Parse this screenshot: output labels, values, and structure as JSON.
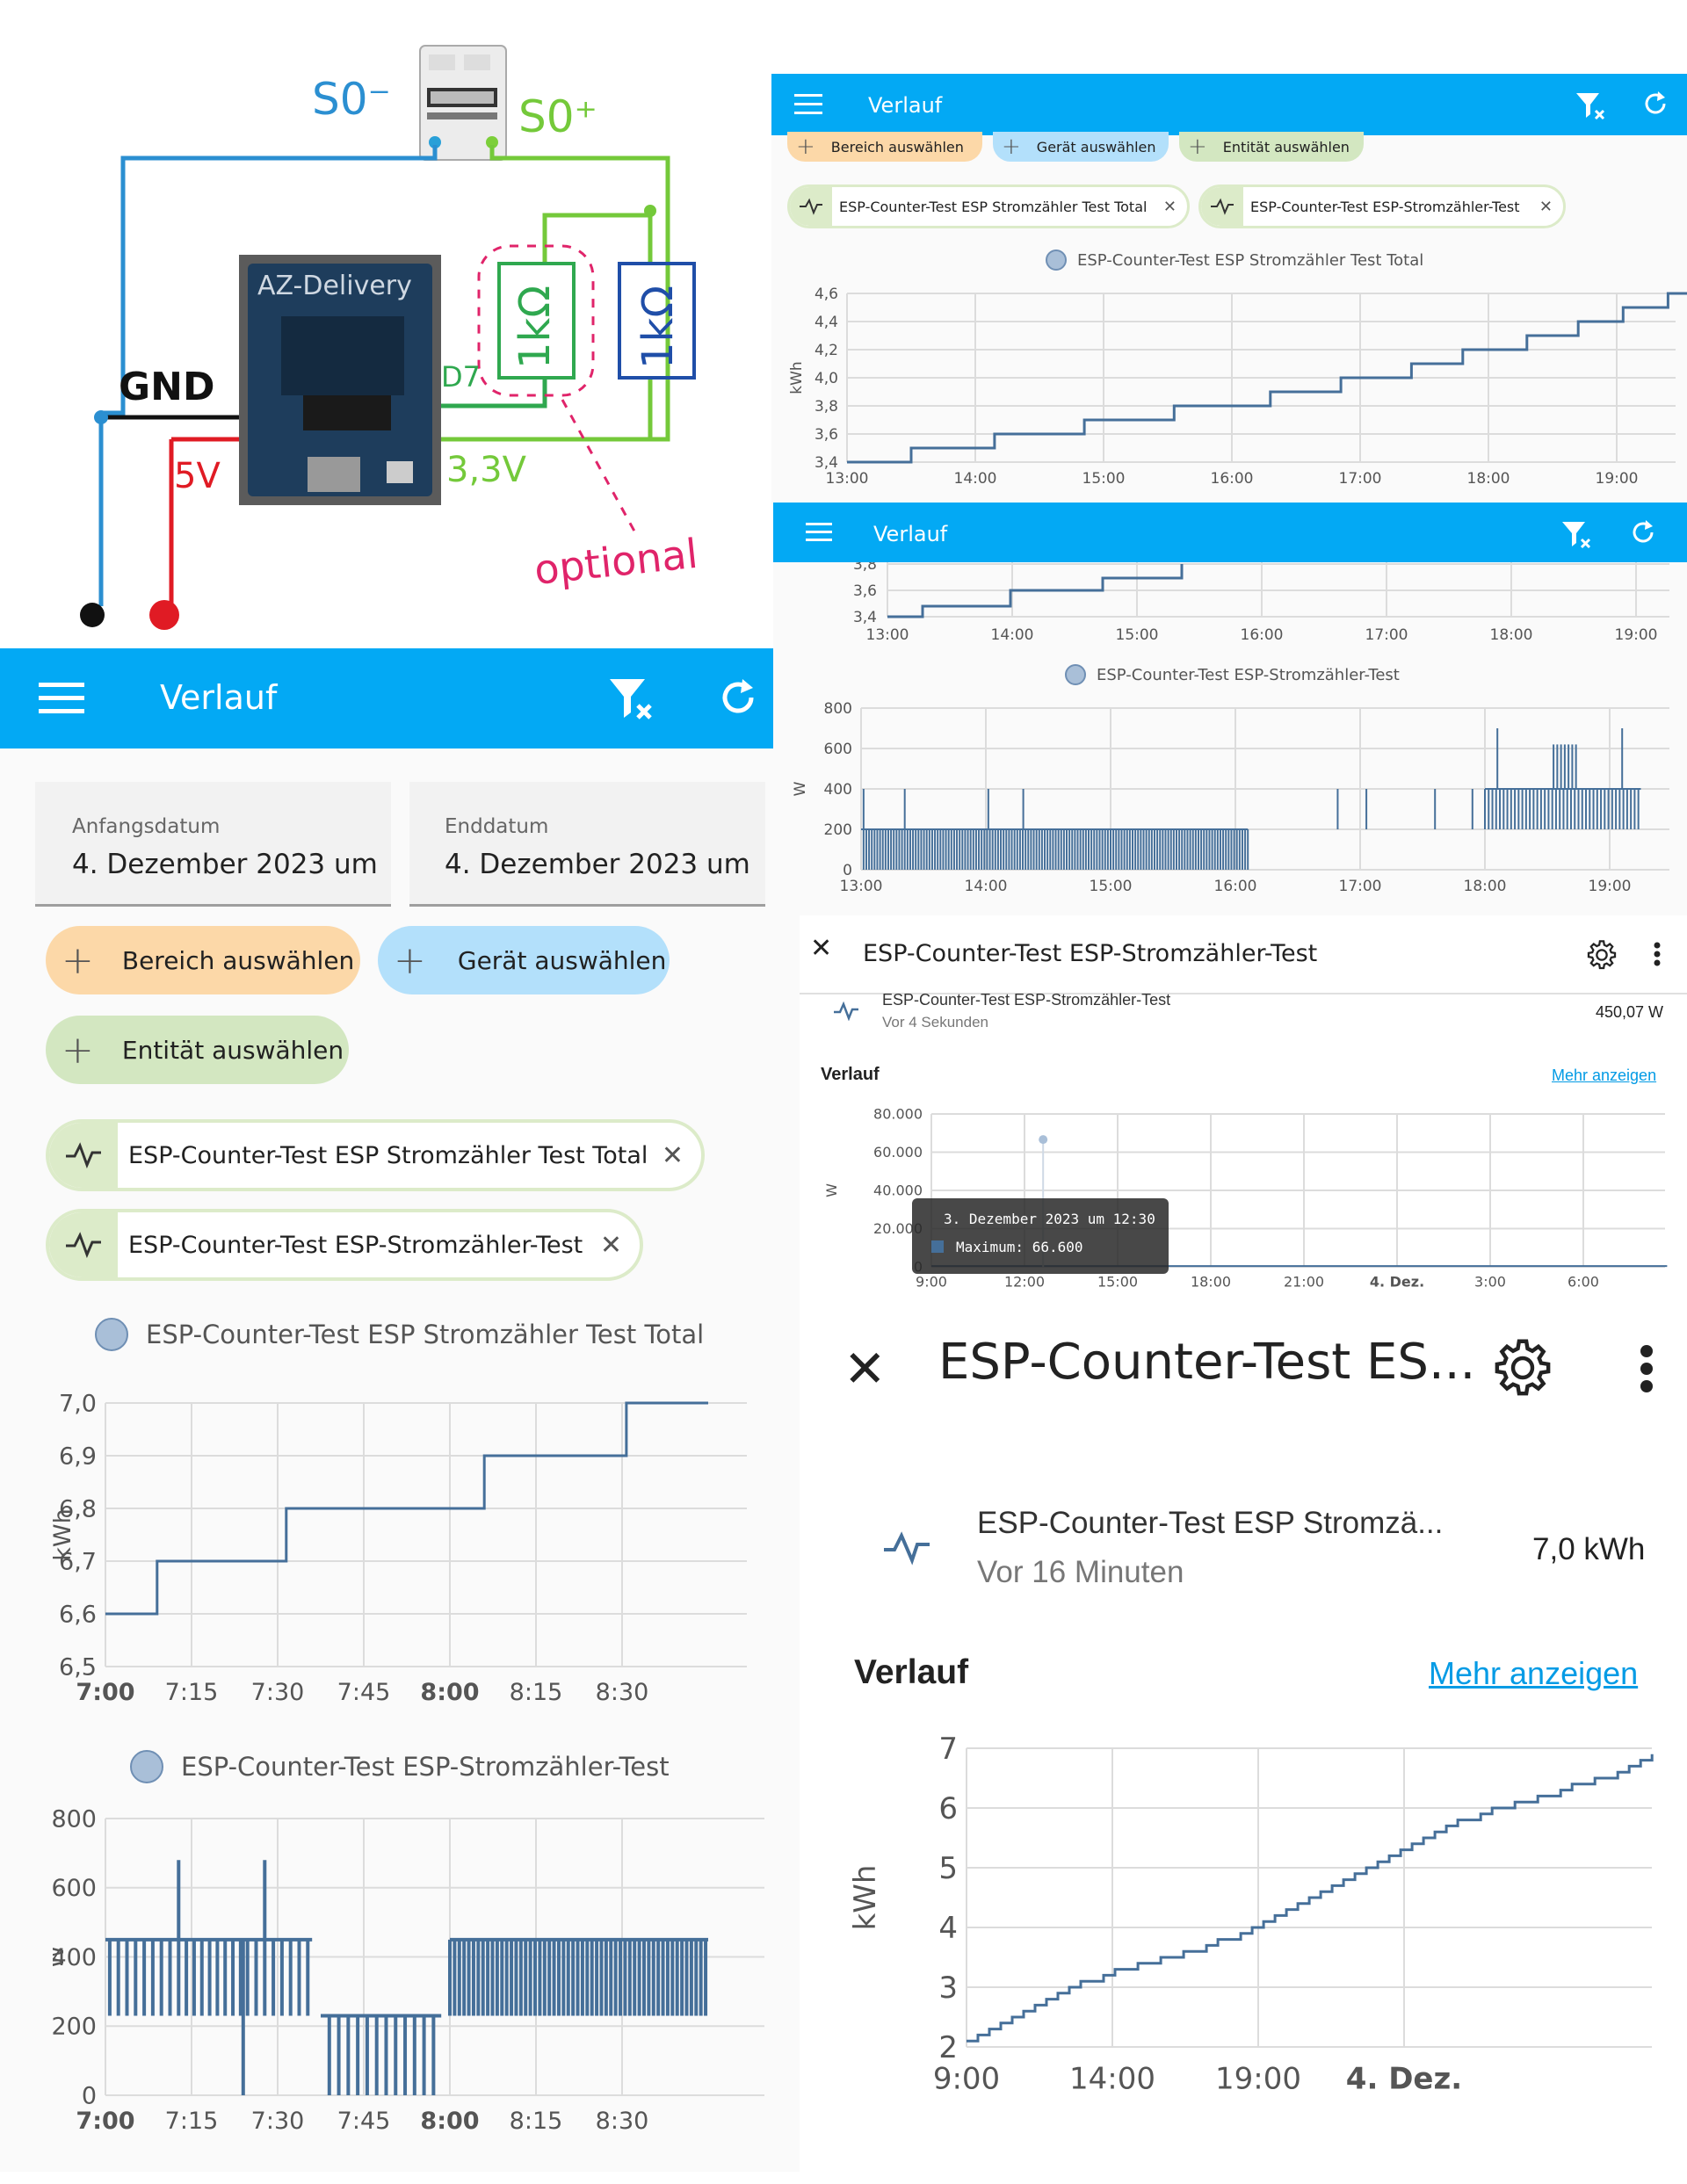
{
  "colors": {
    "appbar": "#03a9f4",
    "series": "#456f99",
    "bereich": "#fcd8a8",
    "geraet": "#b3e0fb",
    "entitaet": "#d3e7c1",
    "link": "#039be5"
  },
  "wiring": {
    "s0_minus": "S0⁻",
    "s0_plus": "S0⁺",
    "gnd": "GND",
    "v5": "5V",
    "v33": "3,3V",
    "d7": "D7",
    "r1": "1kΩ",
    "r2": "1kΩ",
    "optional": "optional",
    "board": "AZ-Delivery"
  },
  "app_bar": {
    "title": "Verlauf",
    "menu_icon": "menu-icon",
    "filter_icon": "filter-remove-icon",
    "refresh_icon": "refresh-icon"
  },
  "filters": {
    "start_label": "Anfangsdatum",
    "start_value": "4. Dezember 2023 um",
    "end_label": "Enddatum",
    "end_value": "4. Dezember 2023 um",
    "bereich": "Bereich auswählen",
    "geraet": "Gerät auswählen",
    "entitaet": "Entität auswählen"
  },
  "entities": {
    "total": "ESP-Counter-Test ESP Stromzähler Test Total",
    "power": "ESP-Counter-Test ESP-Stromzähler-Test"
  },
  "panel_main": {
    "energy_chart": {
      "type": "line",
      "step": true,
      "ylabel": "kWh",
      "y_ticks": [
        "7,0",
        "6,9",
        "6,8",
        "6,7",
        "6,6",
        "6,5"
      ],
      "x_ticks": [
        "7:00",
        "7:15",
        "7:30",
        "7:45",
        "8:00",
        "8:15",
        "8:30"
      ],
      "x": [
        0,
        0.6,
        0.6,
        2.1,
        2.1,
        4.4,
        4.4,
        6.05,
        6.05,
        7.0
      ],
      "y": [
        6.6,
        6.6,
        6.7,
        6.7,
        6.8,
        6.8,
        6.9,
        6.9,
        7.0,
        7.0
      ]
    },
    "power_chart": {
      "type": "bar",
      "ylabel": "W",
      "y_ticks": [
        "800",
        "600",
        "400",
        "200",
        "0"
      ],
      "x_ticks": [
        "7:00",
        "7:15",
        "7:30",
        "7:45",
        "8:00",
        "8:15",
        "8:30"
      ]
    }
  },
  "panel_tr": {
    "chips": [
      "Bereich auswählen",
      "Gerät auswählen",
      "Entität auswählen"
    ],
    "chart": {
      "type": "line",
      "step": true,
      "ylabel": "kWh",
      "y_ticks": [
        "4,6",
        "4,4",
        "4,2",
        "4,0",
        "3,8",
        "3,6",
        "3,4"
      ],
      "x_ticks": [
        "13:00",
        "14:00",
        "15:00",
        "16:00",
        "17:00",
        "18:00",
        "19:00"
      ],
      "x": [
        0,
        0.5,
        0.5,
        1.15,
        1.15,
        1.85,
        1.85,
        2.55,
        2.55,
        3.3,
        3.3,
        3.85,
        3.85,
        4.4,
        4.4,
        4.8,
        4.8,
        5.3,
        5.3,
        5.7,
        5.7,
        6.05,
        6.05,
        6.4,
        6.4,
        6.65
      ],
      "y": [
        3.4,
        3.4,
        3.5,
        3.5,
        3.6,
        3.6,
        3.7,
        3.7,
        3.8,
        3.8,
        3.9,
        3.9,
        4.0,
        4.0,
        4.1,
        4.1,
        4.2,
        4.2,
        4.3,
        4.3,
        4.4,
        4.4,
        4.5,
        4.5,
        4.6,
        4.6
      ]
    }
  },
  "panel_mr": {
    "y_ticks_top": [
      "3,8",
      "3,6",
      "3,4"
    ],
    "x_ticks": [
      "13:00",
      "14:00",
      "15:00",
      "16:00",
      "17:00",
      "18:00",
      "19:00"
    ],
    "power_chart": {
      "type": "bar",
      "ylabel": "W",
      "y_ticks": [
        "800",
        "600",
        "400",
        "200",
        "0"
      ],
      "x_ticks": [
        "13:00",
        "14:00",
        "15:00",
        "16:00",
        "17:00",
        "18:00",
        "19:00"
      ]
    }
  },
  "dialog_small": {
    "title": "ESP-Counter-Test ESP-Stromzähler-Test",
    "entity_name": "ESP-Counter-Test ESP-Stromzähler-Test",
    "entity_time": "Vor 4 Sekunden",
    "entity_value": "450,07 W",
    "history": "Verlauf",
    "more": "Mehr anzeigen",
    "chart": {
      "type": "line",
      "ylabel": "W",
      "y_ticks": [
        "80.000",
        "60.000",
        "40.000",
        "20.000",
        "0"
      ],
      "x_ticks": [
        "9:00",
        "12:00",
        "15:00",
        "18:00",
        "21:00",
        "4. Dez.",
        "3:00",
        "6:00"
      ],
      "spike": {
        "x": 1.2,
        "y": 66600
      }
    },
    "tooltip_title": "3. Dezember 2023 um 12:30",
    "tooltip_value": "Maximum: 66.600"
  },
  "dialog_large": {
    "title": "ESP-Counter-Test ES...",
    "entity_name": "ESP-Counter-Test ESP Stromzä...",
    "entity_time": "Vor 16 Minuten",
    "entity_value": "7,0 kWh",
    "history": "Verlauf",
    "more": "Mehr anzeigen",
    "chart": {
      "type": "line",
      "ylabel": "kWh",
      "y_ticks": [
        "7",
        "6",
        "5",
        "4",
        "3",
        "2"
      ],
      "x_ticks": [
        "9:00",
        "14:00",
        "19:00",
        "4. Dez."
      ]
    }
  }
}
